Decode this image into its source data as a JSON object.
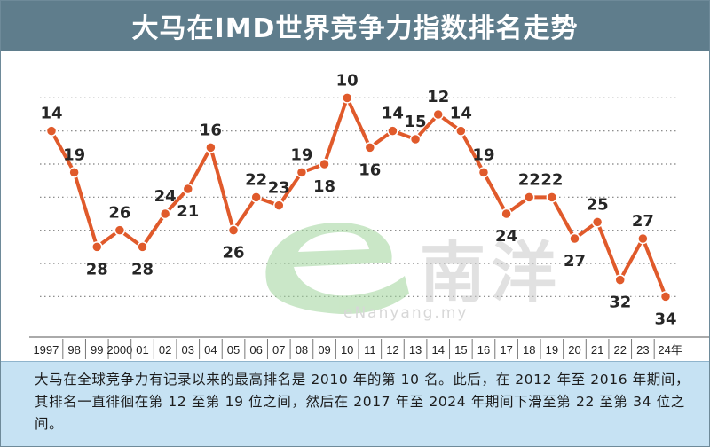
{
  "header": {
    "title": "大马在IMD世界竞争力指数排名走势"
  },
  "watermark": {
    "brand": "南洋",
    "url": "eNanyang.my"
  },
  "note": {
    "text": "大马在全球竞争力有记录以来的最高排名是 2010 年的第 10 名。此后，在 2012 年至 2016 年期间，其排名一直徘徊在第 12 至第 19 位之间，然后在 2017 年至 2024 年期间下滑至第 22 至第 34 位之间。"
  },
  "colors": {
    "line": "#e05a2b",
    "title_bg": "#5f7d8c",
    "note_bg": "#c6e2f3",
    "grid": "#7f7f7f"
  },
  "chart_data": {
    "type": "line",
    "categories": [
      "1997",
      "98",
      "99",
      "2000",
      "01",
      "02",
      "03",
      "04",
      "05",
      "06",
      "07",
      "08",
      "09",
      "10",
      "11",
      "12",
      "13",
      "14",
      "15",
      "16",
      "17",
      "18",
      "19",
      "20",
      "21",
      "22",
      "23",
      "24年"
    ],
    "values": [
      14,
      19,
      28,
      26,
      28,
      24,
      21,
      16,
      26,
      22,
      23,
      19,
      18,
      10,
      16,
      14,
      15,
      12,
      14,
      19,
      24,
      22,
      22,
      27,
      25,
      32,
      27,
      34
    ],
    "label_position": [
      "above",
      "above",
      "below",
      "above",
      "below",
      "above",
      "below",
      "above",
      "below",
      "above",
      "above",
      "above",
      "below",
      "above",
      "below",
      "above",
      "above",
      "above",
      "above",
      "above",
      "below",
      "above",
      "above",
      "below",
      "above",
      "below",
      "above",
      "below"
    ],
    "y_reversed": true,
    "ylim": [
      6,
      36
    ],
    "grid": true
  }
}
